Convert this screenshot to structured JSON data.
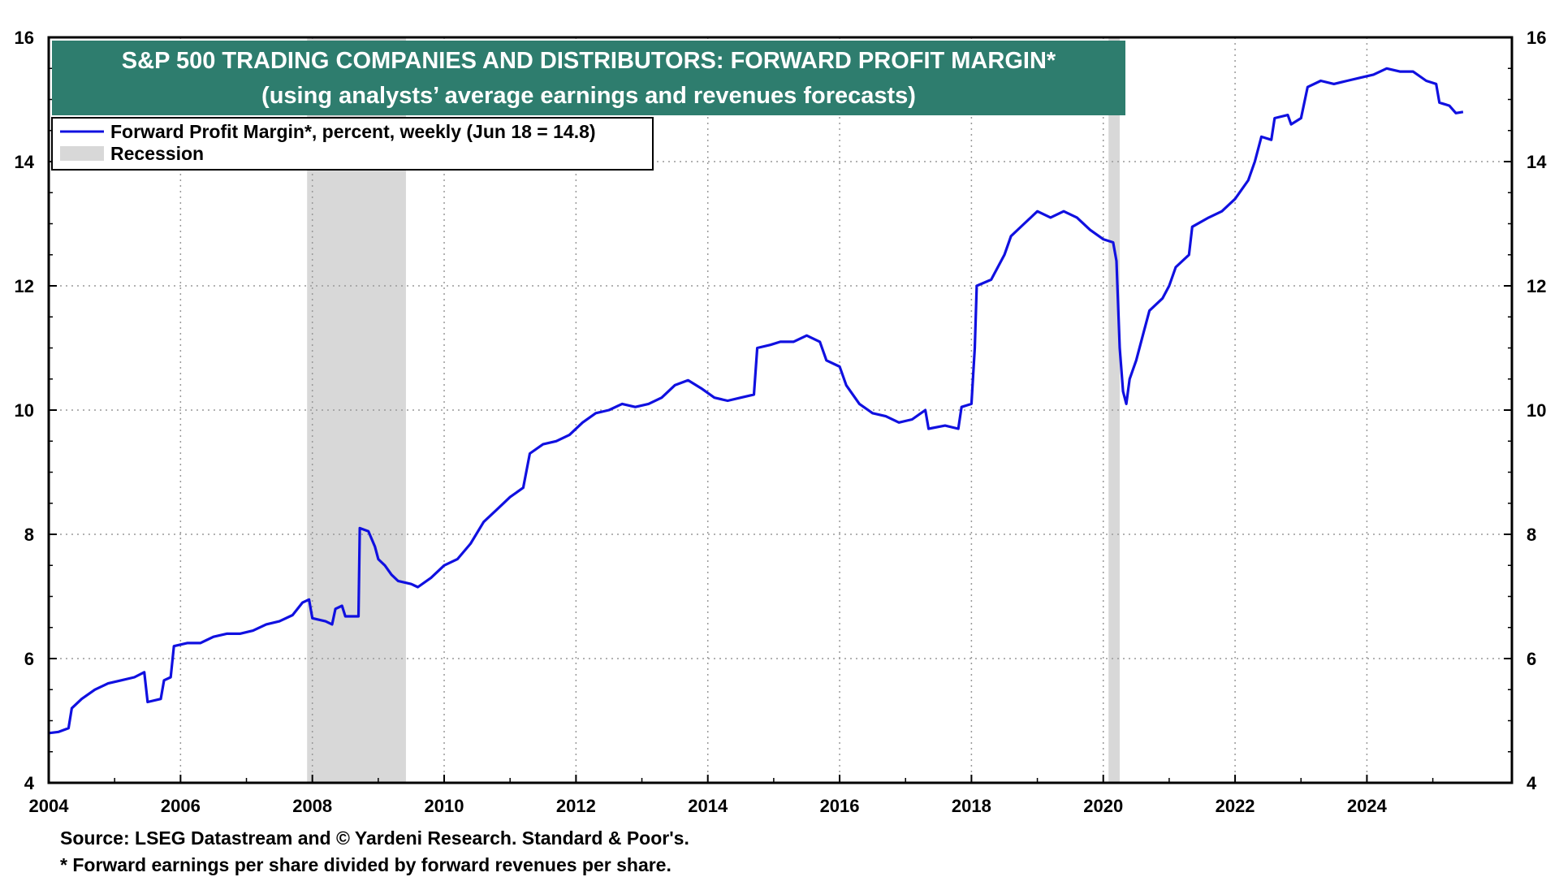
{
  "chart_data": {
    "type": "line",
    "title": "S&P 500 TRADING COMPANIES AND DISTRIBUTORS: FORWARD PROFIT MARGIN*",
    "subtitle": "(using analysts’ average earnings and revenues forecasts)",
    "xlabel": "",
    "ylabel": "",
    "xlim": [
      2004,
      2026.2
    ],
    "ylim": [
      4,
      16
    ],
    "x_ticks": [
      "2004",
      "2006",
      "2008",
      "2010",
      "2012",
      "2014",
      "2016",
      "2018",
      "2020",
      "2022",
      "2024"
    ],
    "y_ticks": [
      "4",
      "6",
      "8",
      "10",
      "12",
      "14",
      "16"
    ],
    "y_right_ticks": [
      "4",
      "6",
      "8",
      "10",
      "12",
      "14",
      "16"
    ],
    "grid": true,
    "legend_position": "top-left",
    "recessions": [
      [
        2007.92,
        2009.42
      ],
      [
        2020.08,
        2020.25
      ]
    ],
    "series": [
      {
        "name": "Forward Profit Margin*, percent, weekly (Jun 18 = 14.8)",
        "color": "#1010e0",
        "points": [
          [
            2004.0,
            4.8
          ],
          [
            2004.15,
            4.82
          ],
          [
            2004.3,
            4.88
          ],
          [
            2004.35,
            5.2
          ],
          [
            2004.5,
            5.35
          ],
          [
            2004.7,
            5.5
          ],
          [
            2004.9,
            5.6
          ],
          [
            2005.1,
            5.65
          ],
          [
            2005.3,
            5.7
          ],
          [
            2005.45,
            5.78
          ],
          [
            2005.5,
            5.3
          ],
          [
            2005.7,
            5.35
          ],
          [
            2005.75,
            5.65
          ],
          [
            2005.85,
            5.7
          ],
          [
            2005.9,
            6.2
          ],
          [
            2006.1,
            6.25
          ],
          [
            2006.3,
            6.25
          ],
          [
            2006.5,
            6.35
          ],
          [
            2006.7,
            6.4
          ],
          [
            2006.9,
            6.4
          ],
          [
            2007.1,
            6.45
          ],
          [
            2007.3,
            6.55
          ],
          [
            2007.5,
            6.6
          ],
          [
            2007.7,
            6.7
          ],
          [
            2007.85,
            6.9
          ],
          [
            2007.95,
            6.95
          ],
          [
            2008.0,
            6.65
          ],
          [
            2008.2,
            6.6
          ],
          [
            2008.3,
            6.55
          ],
          [
            2008.35,
            6.8
          ],
          [
            2008.45,
            6.85
          ],
          [
            2008.5,
            6.68
          ],
          [
            2008.7,
            6.68
          ],
          [
            2008.72,
            8.1
          ],
          [
            2008.85,
            8.05
          ],
          [
            2008.95,
            7.8
          ],
          [
            2009.0,
            7.6
          ],
          [
            2009.1,
            7.5
          ],
          [
            2009.2,
            7.35
          ],
          [
            2009.3,
            7.25
          ],
          [
            2009.5,
            7.2
          ],
          [
            2009.6,
            7.15
          ],
          [
            2009.8,
            7.3
          ],
          [
            2010.0,
            7.5
          ],
          [
            2010.2,
            7.6
          ],
          [
            2010.4,
            7.85
          ],
          [
            2010.6,
            8.2
          ],
          [
            2010.8,
            8.4
          ],
          [
            2011.0,
            8.6
          ],
          [
            2011.2,
            8.75
          ],
          [
            2011.3,
            9.3
          ],
          [
            2011.5,
            9.45
          ],
          [
            2011.7,
            9.5
          ],
          [
            2011.9,
            9.6
          ],
          [
            2012.1,
            9.8
          ],
          [
            2012.3,
            9.95
          ],
          [
            2012.5,
            10.0
          ],
          [
            2012.7,
            10.1
          ],
          [
            2012.9,
            10.05
          ],
          [
            2013.1,
            10.1
          ],
          [
            2013.3,
            10.2
          ],
          [
            2013.5,
            10.4
          ],
          [
            2013.7,
            10.48
          ],
          [
            2013.9,
            10.35
          ],
          [
            2014.1,
            10.2
          ],
          [
            2014.3,
            10.15
          ],
          [
            2014.5,
            10.2
          ],
          [
            2014.7,
            10.25
          ],
          [
            2014.75,
            11.0
          ],
          [
            2014.95,
            11.05
          ],
          [
            2015.1,
            11.1
          ],
          [
            2015.3,
            11.1
          ],
          [
            2015.5,
            11.2
          ],
          [
            2015.7,
            11.1
          ],
          [
            2015.8,
            10.8
          ],
          [
            2016.0,
            10.7
          ],
          [
            2016.1,
            10.4
          ],
          [
            2016.3,
            10.1
          ],
          [
            2016.5,
            9.95
          ],
          [
            2016.7,
            9.9
          ],
          [
            2016.9,
            9.8
          ],
          [
            2017.1,
            9.85
          ],
          [
            2017.3,
            10.0
          ],
          [
            2017.35,
            9.7
          ],
          [
            2017.6,
            9.75
          ],
          [
            2017.8,
            9.7
          ],
          [
            2017.85,
            10.05
          ],
          [
            2018.0,
            10.1
          ],
          [
            2018.05,
            11.0
          ],
          [
            2018.08,
            12.0
          ],
          [
            2018.3,
            12.1
          ],
          [
            2018.5,
            12.5
          ],
          [
            2018.6,
            12.8
          ],
          [
            2018.8,
            13.0
          ],
          [
            2019.0,
            13.2
          ],
          [
            2019.2,
            13.1
          ],
          [
            2019.4,
            13.2
          ],
          [
            2019.6,
            13.1
          ],
          [
            2019.8,
            12.9
          ],
          [
            2020.0,
            12.75
          ],
          [
            2020.15,
            12.7
          ],
          [
            2020.2,
            12.4
          ],
          [
            2020.25,
            11.0
          ],
          [
            2020.3,
            10.3
          ],
          [
            2020.35,
            10.1
          ],
          [
            2020.4,
            10.5
          ],
          [
            2020.5,
            10.8
          ],
          [
            2020.6,
            11.2
          ],
          [
            2020.7,
            11.6
          ],
          [
            2020.9,
            11.8
          ],
          [
            2021.0,
            12.0
          ],
          [
            2021.1,
            12.3
          ],
          [
            2021.3,
            12.5
          ],
          [
            2021.35,
            12.95
          ],
          [
            2021.6,
            13.1
          ],
          [
            2021.8,
            13.2
          ],
          [
            2022.0,
            13.4
          ],
          [
            2022.2,
            13.7
          ],
          [
            2022.3,
            14.0
          ],
          [
            2022.4,
            14.4
          ],
          [
            2022.55,
            14.35
          ],
          [
            2022.6,
            14.7
          ],
          [
            2022.8,
            14.75
          ],
          [
            2022.85,
            14.6
          ],
          [
            2023.0,
            14.7
          ],
          [
            2023.1,
            15.2
          ],
          [
            2023.3,
            15.3
          ],
          [
            2023.5,
            15.25
          ],
          [
            2023.7,
            15.3
          ],
          [
            2023.9,
            15.35
          ],
          [
            2024.1,
            15.4
          ],
          [
            2024.3,
            15.5
          ],
          [
            2024.5,
            15.45
          ],
          [
            2024.7,
            15.45
          ],
          [
            2024.9,
            15.3
          ],
          [
            2025.05,
            15.25
          ],
          [
            2025.1,
            14.95
          ],
          [
            2025.25,
            14.9
          ],
          [
            2025.35,
            14.78
          ],
          [
            2025.46,
            14.8
          ]
        ]
      }
    ],
    "recession_label": "Recession",
    "recession_color": "#d8d8d8",
    "title_bg_color": "#2e7d6e",
    "notes": [
      "Source: LSEG Datastream and © Yardeni Research. Standard & Poor's.",
      "* Forward earnings per share divided by forward revenues per share."
    ]
  }
}
